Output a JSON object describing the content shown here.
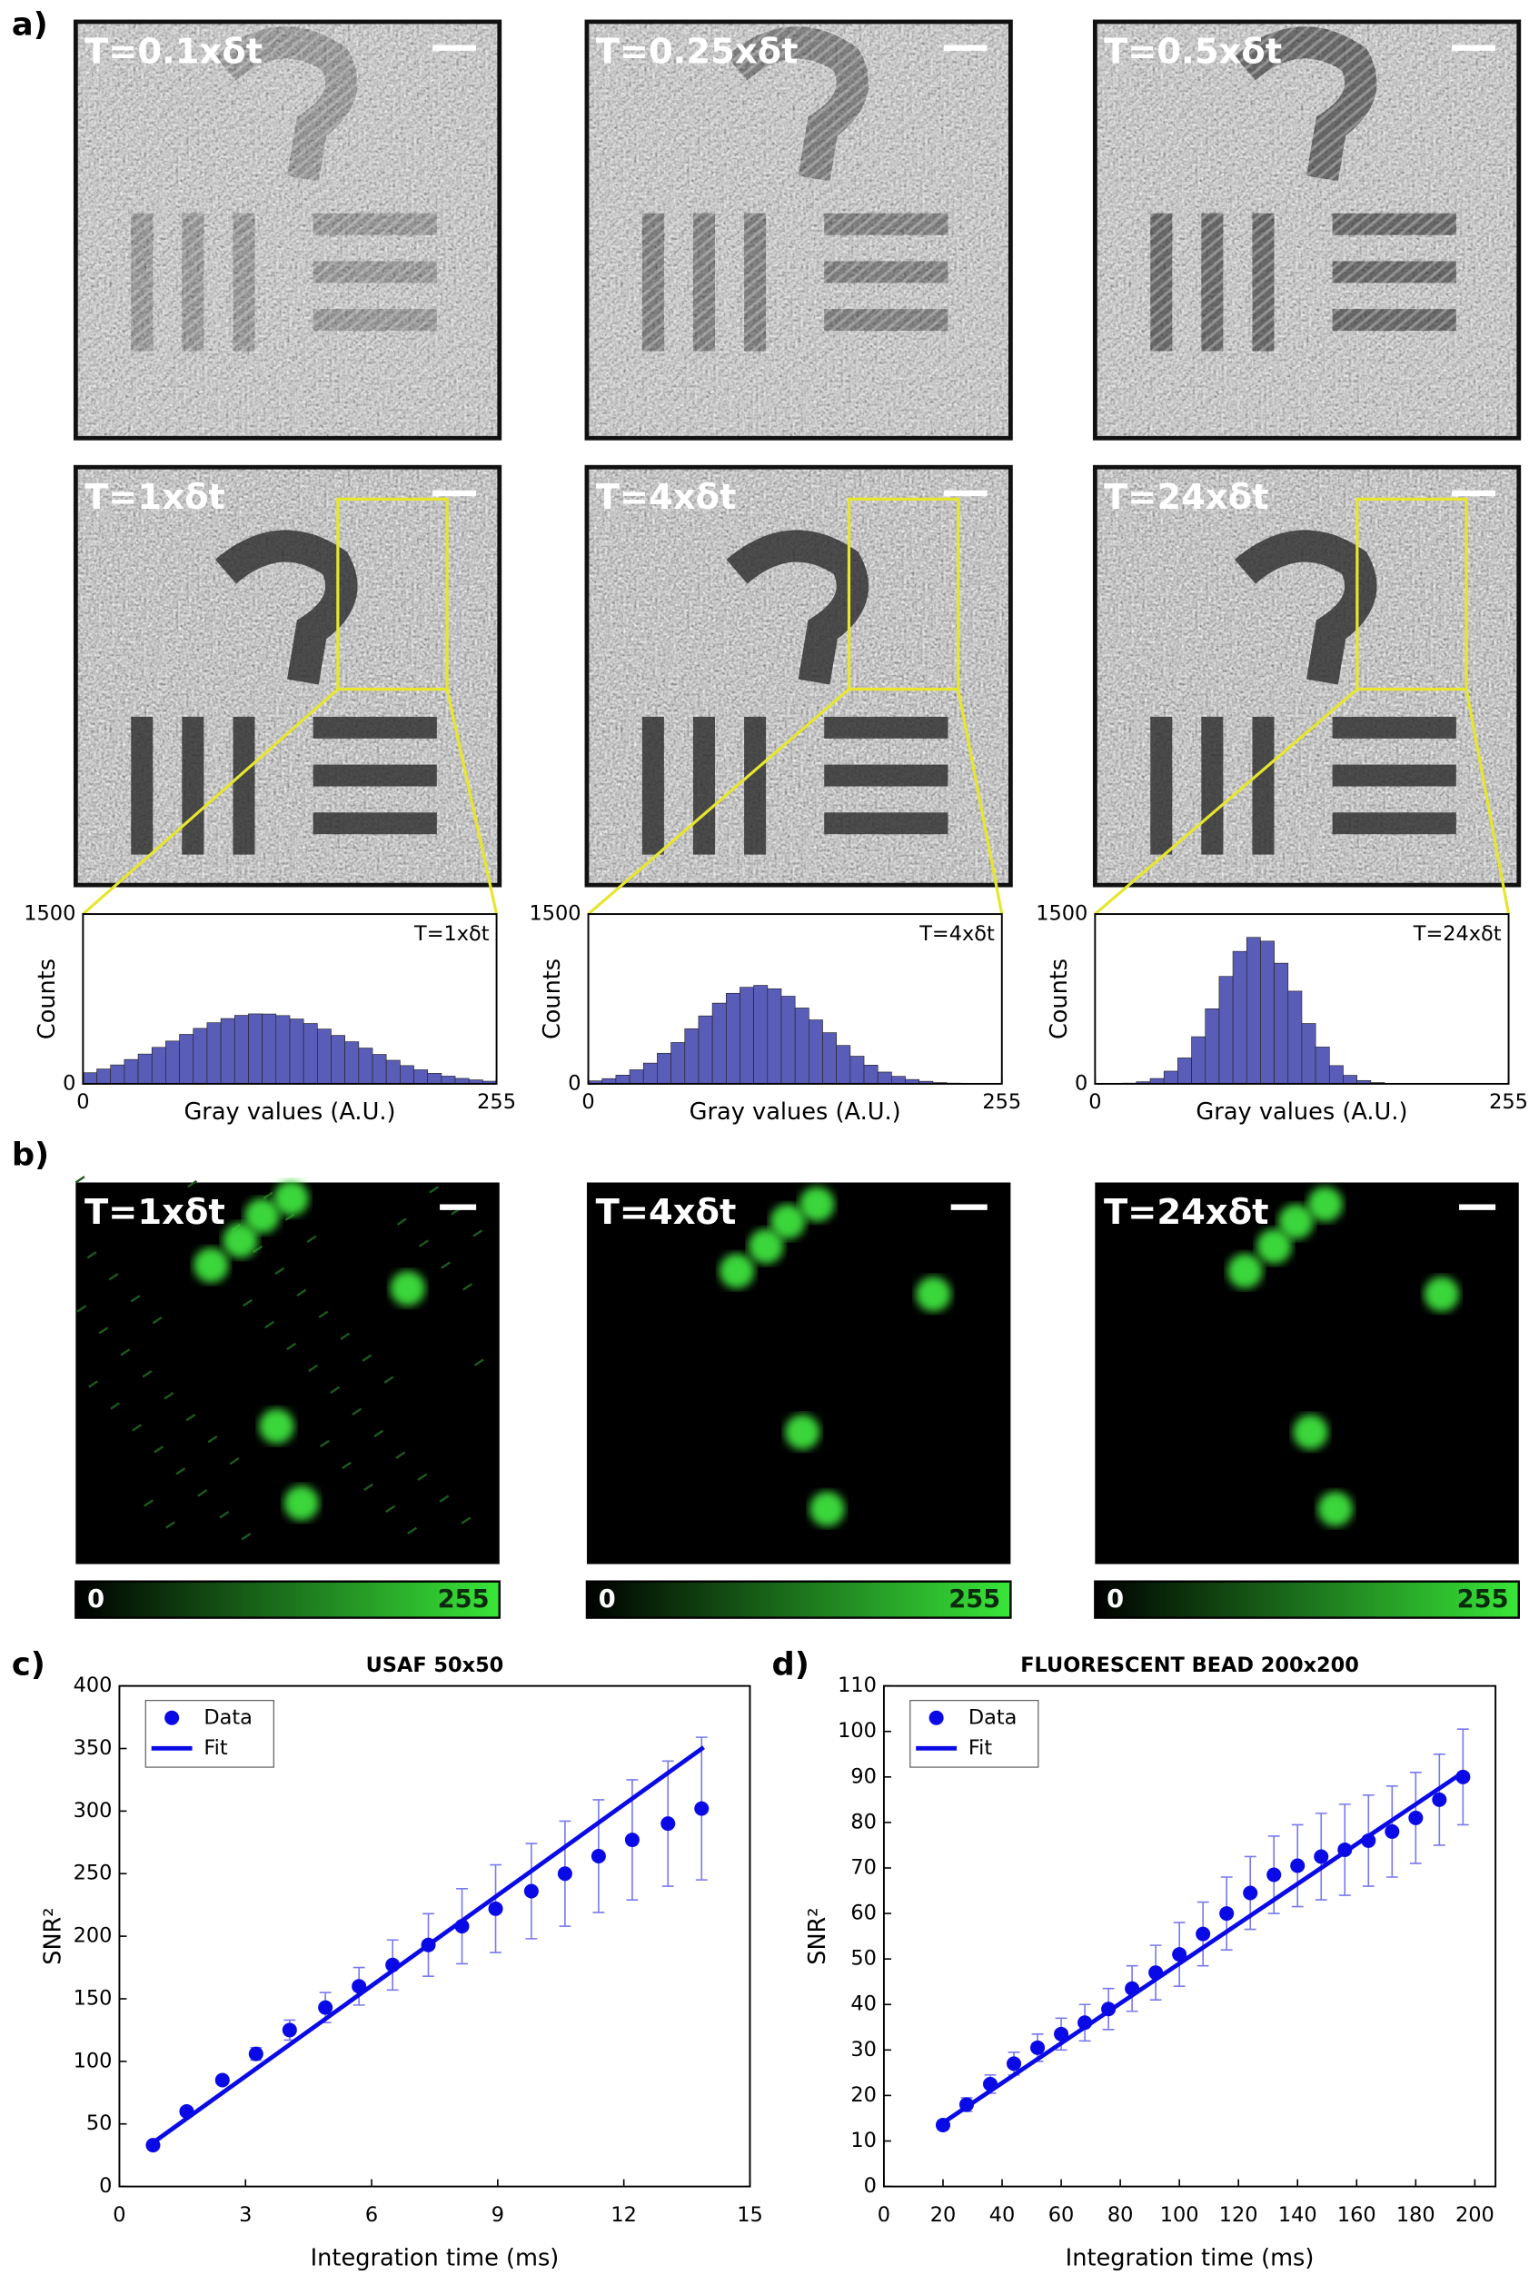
{
  "panel_labels": [
    "a)",
    "b)",
    "c)",
    "d)"
  ],
  "usaf_images": [
    "T=0.1xδt",
    "T=0.25xδt",
    "T=0.5xδt",
    "T=1xδt",
    "T=4xδt",
    "T=24xδt"
  ],
  "bead_images": [
    "T=1xδt",
    "T=4xδt",
    "T=24xδt"
  ],
  "colorbar_labels": [
    "0",
    "255"
  ],
  "chart_data": [
    {
      "type": "histogram",
      "annotation": "T=1xδt",
      "xlabel": "Gray values (A.U.)",
      "ylabel": "Counts",
      "color": "#5a5db8",
      "bins": [
        0,
        8.5,
        17,
        25.5,
        34,
        42.5,
        51,
        59.5,
        68,
        76.5,
        85,
        93.5,
        102,
        110.5,
        119,
        127.5,
        136,
        144.5,
        153,
        161.5,
        170,
        178.5,
        187,
        195.5,
        204,
        212.5,
        221,
        229.5,
        238,
        246.5,
        255
      ],
      "values": [
        98,
        131,
        167,
        215,
        263,
        322,
        378,
        437,
        490,
        540,
        577,
        605,
        618,
        617,
        603,
        573,
        533,
        484,
        428,
        372,
        316,
        260,
        208,
        161,
        124,
        93,
        68,
        48,
        35,
        23
      ],
      "xlim": [
        0,
        255
      ],
      "ylim": [
        0,
        1500
      ],
      "xticks": [
        0,
        255
      ],
      "yticks": [
        0,
        1500
      ]
    },
    {
      "type": "histogram",
      "annotation": "T=4xδt",
      "xlabel": "Gray values (A.U.)",
      "ylabel": "Counts",
      "color": "#5a5db8",
      "bins": [
        0,
        8.5,
        17,
        25.5,
        34,
        42.5,
        51,
        59.5,
        68,
        76.5,
        85,
        93.5,
        102,
        110.5,
        119,
        127.5,
        136,
        144.5,
        153,
        161.5,
        170,
        178.5,
        187,
        195.5,
        204,
        212.5,
        221,
        229.5,
        238,
        246.5,
        255
      ],
      "values": [
        26,
        46,
        77,
        124,
        183,
        270,
        365,
        487,
        600,
        713,
        800,
        853,
        870,
        840,
        774,
        670,
        565,
        452,
        339,
        244,
        165,
        104,
        66,
        38,
        22,
        11,
        6,
        3,
        1,
        1
      ],
      "xlim": [
        0,
        255
      ],
      "ylim": [
        0,
        1500
      ],
      "xticks": [
        0,
        255
      ],
      "yticks": [
        0,
        1500
      ]
    },
    {
      "type": "histogram",
      "annotation": "T=24xδt",
      "xlabel": "Gray values (A.U.)",
      "ylabel": "Counts",
      "color": "#5a5db8",
      "bins": [
        0,
        8.5,
        17,
        25.5,
        34,
        42.5,
        51,
        59.5,
        68,
        76.5,
        85,
        93.5,
        102,
        110.5,
        119,
        127.5,
        136,
        144.5,
        153,
        161.5,
        170,
        178.5,
        187,
        195.5,
        204,
        212.5,
        221,
        229.5,
        238,
        246.5,
        255
      ],
      "values": [
        0,
        2,
        6,
        18,
        47,
        112,
        229,
        416,
        663,
        949,
        1170,
        1294,
        1261,
        1066,
        819,
        533,
        325,
        161,
        75,
        29,
        11,
        3,
        1,
        0,
        0,
        0,
        0,
        0,
        0,
        0
      ],
      "xlim": [
        0,
        255
      ],
      "ylim": [
        0,
        1500
      ],
      "xticks": [
        0,
        255
      ],
      "yticks": [
        0,
        1500
      ]
    },
    {
      "type": "scatter",
      "title": "USAF 50x50",
      "xlabel": "Integration time (ms)",
      "ylabel": "SNR²",
      "legend": "upper left",
      "error_color": "#7878f0",
      "xlim": [
        0,
        15
      ],
      "ylim": [
        0,
        400
      ],
      "xticks": [
        0,
        3,
        6,
        9,
        12,
        15
      ],
      "yticks": [
        0,
        50,
        100,
        150,
        200,
        250,
        300,
        350,
        400
      ],
      "series": [
        {
          "name": "Data",
          "color": "#0a0ae6",
          "mode": "markers",
          "x": [
            0.8,
            1.6,
            2.45,
            3.25,
            4.05,
            4.9,
            5.7,
            6.5,
            7.35,
            8.15,
            8.95,
            9.8,
            10.6,
            11.4,
            12.2,
            13.05,
            13.85
          ],
          "values": [
            33,
            60,
            85,
            106,
            125,
            143,
            160,
            177,
            193,
            208,
            222,
            236,
            250,
            264,
            277,
            290,
            302
          ],
          "errors": [
            3,
            3,
            3,
            5,
            8,
            12,
            15,
            20,
            25,
            30,
            35,
            38,
            42,
            45,
            48,
            50,
            57
          ]
        },
        {
          "name": "Fit",
          "color": "#0a0ae6",
          "mode": "line",
          "x": [
            0.8,
            13.9
          ],
          "values": [
            35,
            351
          ]
        }
      ]
    },
    {
      "type": "scatter",
      "title": "FLUORESCENT BEAD 200x200",
      "xlabel": "Integration time (ms)",
      "ylabel": "SNR²",
      "legend": "upper left",
      "error_color": "#7878f0",
      "xlim": [
        0,
        207
      ],
      "ylim": [
        0,
        110
      ],
      "xticks": [
        0,
        20,
        40,
        60,
        80,
        100,
        120,
        140,
        160,
        180,
        200
      ],
      "yticks": [
        0,
        10,
        20,
        30,
        40,
        50,
        60,
        70,
        80,
        90,
        100,
        110
      ],
      "series": [
        {
          "name": "Data",
          "color": "#0a0ae6",
          "mode": "markers",
          "x": [
            20,
            28,
            36,
            44,
            52,
            60,
            68,
            76,
            84,
            92,
            100,
            108,
            116,
            124,
            132,
            140,
            148,
            156,
            164,
            172,
            180,
            188,
            196
          ],
          "values": [
            13.5,
            18,
            22.5,
            27,
            30.5,
            33.5,
            36,
            39,
            43.5,
            47,
            51,
            55.5,
            60,
            64.5,
            68.5,
            70.5,
            72.5,
            74,
            76,
            78,
            81,
            85,
            90
          ],
          "errors": [
            1,
            1.5,
            2,
            2.5,
            3,
            3.5,
            4,
            4.5,
            5,
            6,
            7,
            7,
            8,
            8,
            8.5,
            9,
            9.5,
            10,
            10,
            10,
            10,
            10,
            10.5
          ]
        },
        {
          "name": "Fit",
          "color": "#0a0ae6",
          "mode": "line",
          "x": [
            20,
            196
          ],
          "values": [
            14,
            91
          ]
        }
      ]
    }
  ]
}
